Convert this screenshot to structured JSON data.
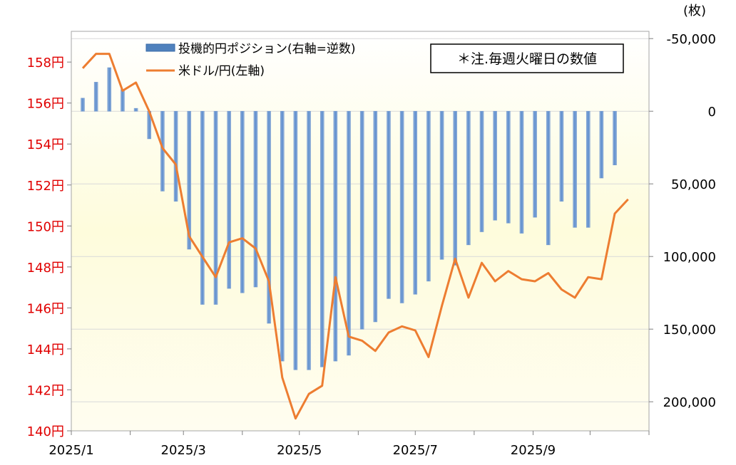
{
  "chart_data": {
    "type": "bar+line",
    "note": "＊注.毎週火曜日の数値",
    "right_axis_unit": "(枚)",
    "x_tick_labels": [
      "2025/1",
      "2025/3",
      "2025/5",
      "2025/7",
      "2025/9"
    ],
    "left_axis": {
      "label": "",
      "ylim": [
        140,
        159.5
      ],
      "ticks": [
        140,
        142,
        144,
        146,
        148,
        150,
        152,
        154,
        156,
        158
      ],
      "tick_labels": [
        "140円",
        "142円",
        "144円",
        "146円",
        "148円",
        "150円",
        "152円",
        "154円",
        "156円",
        "158円"
      ]
    },
    "right_axis": {
      "label": "",
      "inverted": true,
      "ylim": [
        -55000,
        220000
      ],
      "ticks": [
        -50000,
        0,
        50000,
        100000,
        150000,
        200000
      ],
      "tick_labels": [
        "-50,000",
        "0",
        "50,000",
        "100,000",
        "150,000",
        "200,000"
      ]
    },
    "x_dates": [
      "2025-01-07",
      "2025-01-14",
      "2025-01-21",
      "2025-01-28",
      "2025-02-04",
      "2025-02-11",
      "2025-02-18",
      "2025-02-25",
      "2025-03-04",
      "2025-03-11",
      "2025-03-18",
      "2025-03-25",
      "2025-04-01",
      "2025-04-08",
      "2025-04-15",
      "2025-04-22",
      "2025-04-29",
      "2025-05-06",
      "2025-05-13",
      "2025-05-20",
      "2025-05-27",
      "2025-06-03",
      "2025-06-10",
      "2025-06-17",
      "2025-06-24",
      "2025-07-01",
      "2025-07-08",
      "2025-07-15",
      "2025-07-22",
      "2025-07-29",
      "2025-08-05",
      "2025-08-12",
      "2025-08-19",
      "2025-08-26",
      "2025-09-02",
      "2025-09-09",
      "2025-09-16",
      "2025-09-23",
      "2025-09-30",
      "2025-10-07",
      "2025-10-14",
      "2025-10-21"
    ],
    "series": [
      {
        "name": "投機的円ポジション(右軸=逆数)",
        "type": "bar",
        "axis": "right",
        "color": "#4f81bd",
        "values": [
          -9000,
          -20000,
          -30000,
          -15000,
          -2000,
          19000,
          55000,
          62000,
          95000,
          133000,
          133000,
          122000,
          125000,
          121000,
          146000,
          172000,
          178000,
          178000,
          176000,
          172000,
          168000,
          150000,
          145000,
          129000,
          132000,
          126000,
          117000,
          102000,
          106000,
          92000,
          83000,
          75000,
          77000,
          84000,
          73000,
          92000,
          62000,
          80000,
          80000,
          46000,
          37000,
          0
        ],
        "present": [
          true,
          true,
          true,
          true,
          true,
          true,
          true,
          true,
          true,
          true,
          true,
          true,
          true,
          true,
          true,
          true,
          true,
          true,
          true,
          true,
          true,
          true,
          true,
          true,
          true,
          true,
          true,
          true,
          true,
          true,
          true,
          true,
          true,
          true,
          true,
          true,
          true,
          true,
          true,
          true,
          true,
          false
        ]
      },
      {
        "name": "米ドル/円(左軸)",
        "type": "line",
        "axis": "left",
        "color": "#ed7d31",
        "values": [
          157.7,
          158.4,
          158.4,
          156.6,
          157.0,
          155.6,
          153.8,
          153.0,
          149.5,
          148.5,
          147.5,
          149.2,
          149.4,
          148.9,
          147.3,
          142.6,
          140.6,
          141.8,
          142.2,
          147.5,
          144.6,
          144.4,
          143.9,
          144.8,
          145.1,
          144.9,
          143.6,
          146.1,
          148.4,
          146.5,
          148.2,
          147.3,
          147.8,
          147.4,
          147.3,
          147.7,
          146.9,
          146.5,
          147.5,
          147.4,
          150.6,
          151.3
        ]
      }
    ]
  }
}
